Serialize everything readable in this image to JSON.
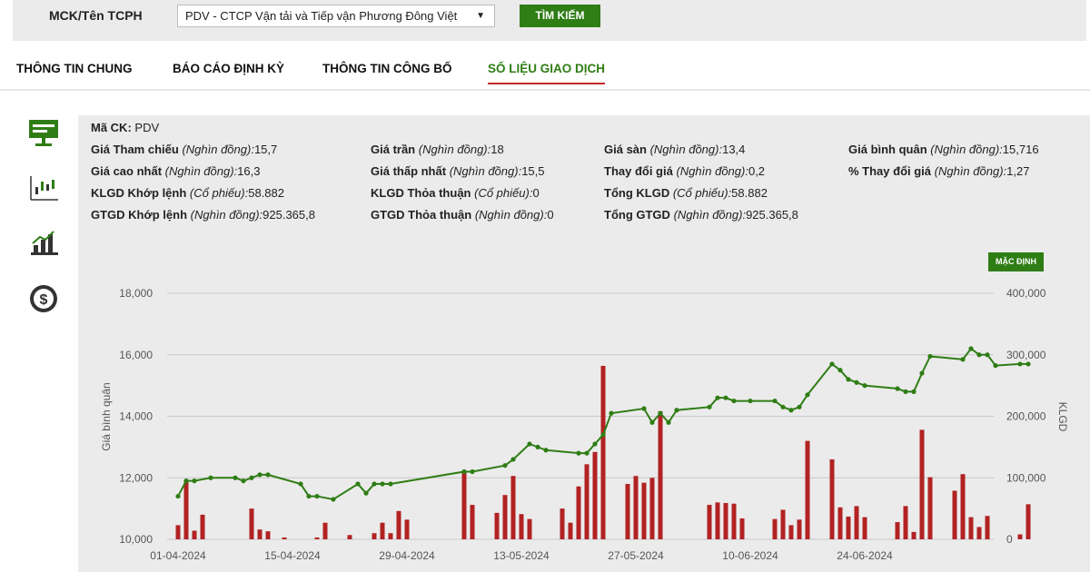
{
  "search": {
    "label": "MCK/Tên TCPH",
    "selected": "PDV - CTCP Vận tải và Tiếp vận Phương Đông Việt",
    "button": "TÌM KIẾM"
  },
  "tabs": [
    {
      "label": "THÔNG TIN CHUNG"
    },
    {
      "label": "BÁO CÁO ĐỊNH KỲ"
    },
    {
      "label": "THÔNG TIN CÔNG BỐ"
    },
    {
      "label": "SỐ LIỆU GIAO DỊCH",
      "active": true
    }
  ],
  "sidebar": {
    "icons": [
      "presentation-board-icon",
      "candlestick-chart-icon",
      "bar-growth-chart-icon",
      "dollar-coin-icon"
    ],
    "accent": "#2f7d15"
  },
  "info": {
    "ticker_label": "Mã CK:",
    "ticker": "PDV",
    "fields": [
      {
        "label": "Giá Tham chiếu",
        "unit": "(Nghìn đồng):",
        "value": "15,7"
      },
      {
        "label": "Giá trần",
        "unit": "(Nghìn đồng):",
        "value": "18"
      },
      {
        "label": "Giá sàn",
        "unit": "(Nghìn đồng):",
        "value": "13,4"
      },
      {
        "label": "Giá bình quân",
        "unit": "(Nghìn đồng):",
        "value": "15,716"
      },
      {
        "label": "Giá cao nhất",
        "unit": "(Nghìn đồng):",
        "value": "16,3"
      },
      {
        "label": "Giá thấp nhất",
        "unit": "(Nghìn đồng):",
        "value": "15,5"
      },
      {
        "label": "Thay đổi giá",
        "unit": "(Nghìn đồng):",
        "value": "0,2"
      },
      {
        "label": "% Thay đổi giá",
        "unit": "(Nghìn đồng):",
        "value": "1,27"
      },
      {
        "label": "KLGD Khớp lệnh",
        "unit": "(Cổ phiếu):",
        "value": "58.882"
      },
      {
        "label": "KLGD Thỏa thuận",
        "unit": "(Cổ phiếu):",
        "value": "0"
      },
      {
        "label": "Tổng KLGD",
        "unit": "(Cổ phiếu):",
        "value": "58.882"
      },
      {
        "label": "GTGD Khớp lệnh",
        "unit": "(Nghìn đồng):",
        "value": "925.365,8"
      },
      {
        "label": "GTGD Thỏa thuận",
        "unit": "(Nghìn đồng):",
        "value": "0"
      },
      {
        "label": "Tổng GTGD",
        "unit": "(Nghìn đồng):",
        "value": "925.365,8"
      }
    ]
  },
  "chart": {
    "button": "MẶC ĐỊNH"
  },
  "chart_data": {
    "type": "bar+line",
    "ylabel_left": "Giá bình quân",
    "ylabel_right": "KLGD",
    "y_left_ticks": [
      "10,000",
      "12,000",
      "14,000",
      "16,000",
      "18,000"
    ],
    "y_left_range": [
      10000,
      18000
    ],
    "y_right_ticks": [
      "0",
      "100,000",
      "200,000",
      "300,000",
      "400,000"
    ],
    "y_right_range": [
      0,
      400000
    ],
    "x_ticks": [
      "01-04-2024",
      "15-04-2024",
      "29-04-2024",
      "13-05-2024",
      "27-05-2024",
      "10-06-2024",
      "24-06-2024"
    ],
    "x_day_range": [
      0,
      92
    ],
    "colors": {
      "line": "#2f7d15",
      "bar": "#b22222",
      "grid": "#c8c8c8"
    },
    "series": [
      {
        "kind": "line",
        "points": [
          [
            0,
            11400
          ],
          [
            1,
            11900
          ],
          [
            2,
            11900
          ],
          [
            4,
            12000
          ],
          [
            7,
            12000
          ],
          [
            8,
            11900
          ],
          [
            9,
            12000
          ],
          [
            10,
            12100
          ],
          [
            11,
            12100
          ],
          [
            15,
            11800
          ],
          [
            16,
            11400
          ],
          [
            17,
            11400
          ],
          [
            19,
            11300
          ],
          [
            22,
            11800
          ],
          [
            23,
            11500
          ],
          [
            24,
            11800
          ],
          [
            25,
            11800
          ],
          [
            26,
            11800
          ],
          [
            35,
            12200
          ],
          [
            36,
            12200
          ],
          [
            40,
            12400
          ],
          [
            41,
            12600
          ],
          [
            43,
            13100
          ],
          [
            44,
            13000
          ],
          [
            45,
            12900
          ],
          [
            49,
            12800
          ],
          [
            50,
            12800
          ],
          [
            51,
            13100
          ],
          [
            52,
            13400
          ],
          [
            53,
            14100
          ],
          [
            57,
            14250
          ],
          [
            58,
            13800
          ],
          [
            59,
            14100
          ],
          [
            60,
            13800
          ],
          [
            61,
            14200
          ],
          [
            65,
            14300
          ],
          [
            66,
            14600
          ],
          [
            67,
            14600
          ],
          [
            68,
            14500
          ],
          [
            70,
            14500
          ],
          [
            73,
            14500
          ],
          [
            74,
            14300
          ],
          [
            75,
            14200
          ],
          [
            76,
            14300
          ],
          [
            77,
            14700
          ],
          [
            80,
            15700
          ],
          [
            81,
            15500
          ],
          [
            82,
            15200
          ],
          [
            83,
            15100
          ],
          [
            84,
            15000
          ],
          [
            88,
            14900
          ],
          [
            89,
            14800
          ],
          [
            90,
            14800
          ],
          [
            91,
            15400
          ],
          [
            92,
            15950
          ],
          [
            96,
            15850
          ],
          [
            97,
            16200
          ],
          [
            98,
            16000
          ],
          [
            99,
            16000
          ],
          [
            100,
            15650
          ],
          [
            103,
            15700
          ],
          [
            104,
            15700
          ]
        ]
      },
      {
        "kind": "bar",
        "points": [
          [
            0,
            23000
          ],
          [
            1,
            95000
          ],
          [
            2,
            14000
          ],
          [
            3,
            40000
          ],
          [
            9,
            50000
          ],
          [
            10,
            16000
          ],
          [
            11,
            13000
          ],
          [
            13,
            3000
          ],
          [
            17,
            3000
          ],
          [
            18,
            27000
          ],
          [
            21,
            7000
          ],
          [
            24,
            10000
          ],
          [
            25,
            27000
          ],
          [
            26,
            10000
          ],
          [
            27,
            46000
          ],
          [
            28,
            32000
          ],
          [
            35,
            110000
          ],
          [
            36,
            56000
          ],
          [
            39,
            43000
          ],
          [
            40,
            72000
          ],
          [
            41,
            103000
          ],
          [
            42,
            41000
          ],
          [
            43,
            33000
          ],
          [
            47,
            50000
          ],
          [
            48,
            27000
          ],
          [
            49,
            86000
          ],
          [
            50,
            122000
          ],
          [
            51,
            142000
          ],
          [
            52,
            282000
          ],
          [
            55,
            90000
          ],
          [
            56,
            103000
          ],
          [
            57,
            92000
          ],
          [
            58,
            100000
          ],
          [
            59,
            208000
          ],
          [
            65,
            56000
          ],
          [
            66,
            60000
          ],
          [
            67,
            59000
          ],
          [
            68,
            58000
          ],
          [
            69,
            34000
          ],
          [
            73,
            33000
          ],
          [
            74,
            48000
          ],
          [
            75,
            23000
          ],
          [
            76,
            32000
          ],
          [
            77,
            160000
          ],
          [
            80,
            130000
          ],
          [
            81,
            52000
          ],
          [
            82,
            37000
          ],
          [
            83,
            54000
          ],
          [
            84,
            36000
          ],
          [
            88,
            28000
          ],
          [
            89,
            54000
          ],
          [
            90,
            12000
          ],
          [
            91,
            178000
          ],
          [
            92,
            101000
          ],
          [
            95,
            79000
          ],
          [
            96,
            106000
          ],
          [
            97,
            36000
          ],
          [
            98,
            20000
          ],
          [
            99,
            38000
          ],
          [
            103,
            8000
          ],
          [
            104,
            57000
          ]
        ]
      }
    ]
  }
}
